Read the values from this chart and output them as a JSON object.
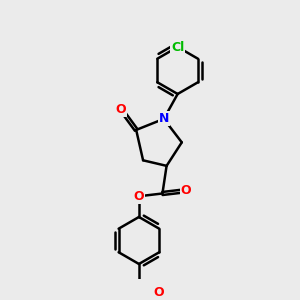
{
  "bg_color": "#ebebeb",
  "bond_color": "#000000",
  "bond_width": 1.8,
  "atom_colors": {
    "O": "#ff0000",
    "N": "#0000ff",
    "Cl": "#00bb00",
    "C": "#000000"
  },
  "figsize": [
    3.0,
    3.0
  ],
  "dpi": 100,
  "xlim": [
    0,
    10
  ],
  "ylim": [
    0,
    10
  ]
}
